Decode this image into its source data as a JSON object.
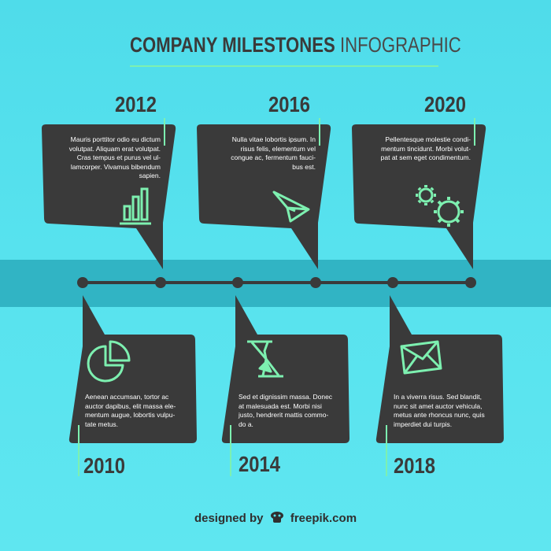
{
  "title": {
    "bold": "COMPANY MILESTONES",
    "light": "INFOGRAPHIC"
  },
  "colors": {
    "background": "#57e2ee",
    "band": "#31b4c4",
    "bubble": "#3a3a3a",
    "accent": "#7df0b0",
    "text": "#ffffff"
  },
  "milestones_top": [
    {
      "year": "2012",
      "icon": "bar-chart-icon",
      "text": [
        "Mauris porttitor odio eu dictum",
        "volutpat. Aliquam erat volutpat.",
        "Cras tempus et purus vel ul-",
        "lamcorper. Vivamus bibendum",
        "sapien."
      ]
    },
    {
      "year": "2016",
      "icon": "paper-plane-icon",
      "text": [
        "Nulla vitae lobortis ipsum. In",
        "risus felis, elementum vel",
        "congue ac, fermentum fauci-",
        "bus est."
      ]
    },
    {
      "year": "2020",
      "icon": "gears-icon",
      "text": [
        "Pellentesque molestie condi-",
        "mentum tincidunt. Morbi volut-",
        "pat at sem eget condimentum."
      ]
    }
  ],
  "milestones_bottom": [
    {
      "year": "2010",
      "icon": "pie-chart-icon",
      "text": [
        "Aenean accumsan, tortor ac",
        "auctor dapibus, elit massa ele-",
        "mentum augue, lobortis vulpu-",
        "tate metus."
      ]
    },
    {
      "year": "2014",
      "icon": "hourglass-icon",
      "text": [
        "Sed et dignissim massa. Donec",
        "at malesuada est. Morbi nisi",
        "justo, hendrerit mattis commo-",
        "do a."
      ]
    },
    {
      "year": "2018",
      "icon": "envelope-icon",
      "text": [
        "In a viverra risus. Sed blandit,",
        "nunc sit amet auctor vehicula,",
        "metus ante rhoncus nunc, quis",
        "imperdiet dui turpis."
      ]
    }
  ],
  "credit": {
    "prefix": "designed by",
    "brand": "freepik.com"
  }
}
